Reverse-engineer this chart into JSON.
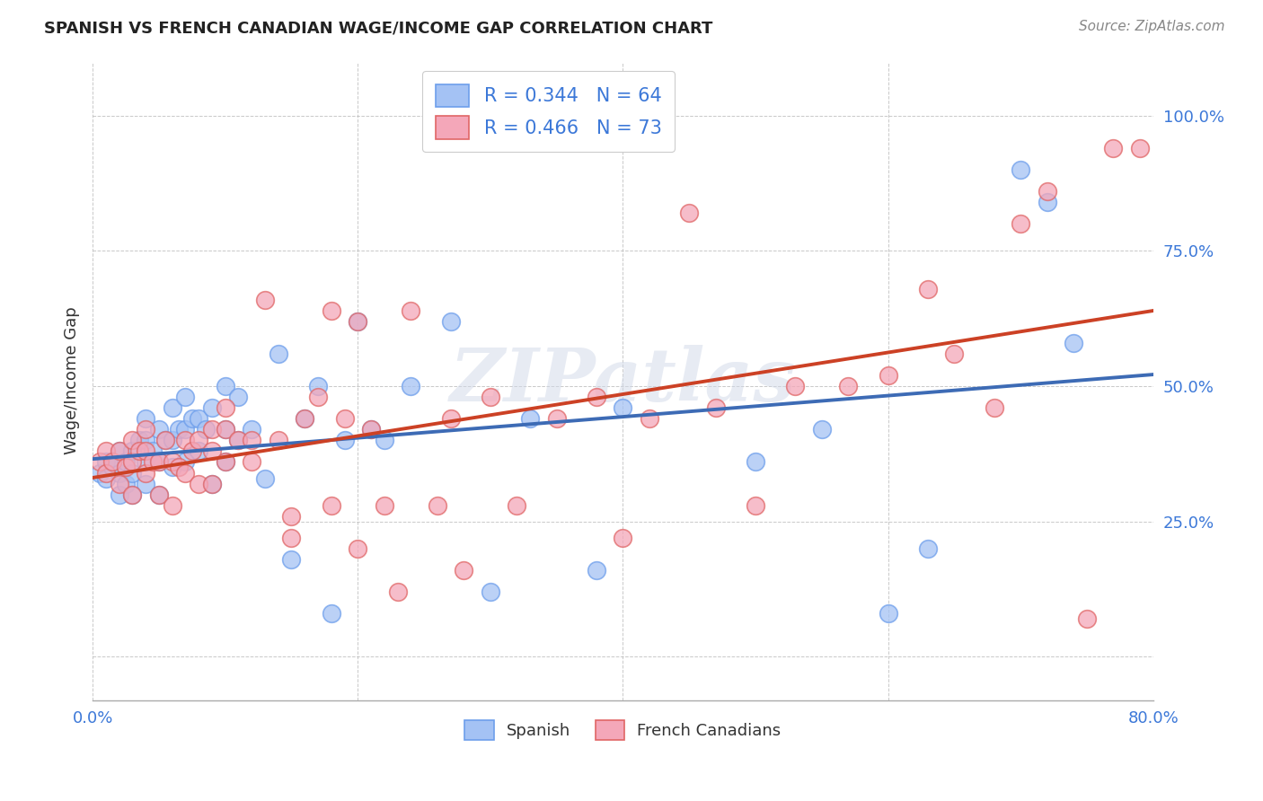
{
  "title": "SPANISH VS FRENCH CANADIAN WAGE/INCOME GAP CORRELATION CHART",
  "source": "Source: ZipAtlas.com",
  "ylabel": "Wage/Income Gap",
  "xlim": [
    0.0,
    0.8
  ],
  "ylim": [
    -0.08,
    1.1
  ],
  "xticks": [
    0.0,
    0.2,
    0.4,
    0.6,
    0.8
  ],
  "xticklabels": [
    "0.0%",
    "",
    "",
    "",
    "80.0%"
  ],
  "yticks": [
    0.0,
    0.25,
    0.5,
    0.75,
    1.0
  ],
  "yticklabels": [
    "",
    "25.0%",
    "50.0%",
    "75.0%",
    "100.0%"
  ],
  "spanish_R": 0.344,
  "spanish_N": 64,
  "french_R": 0.466,
  "french_N": 73,
  "spanish_color": "#a4c2f4",
  "french_color": "#f4a7b9",
  "spanish_edge_color": "#6d9eeb",
  "french_edge_color": "#e06666",
  "spanish_line_color": "#3d6bb5",
  "french_line_color": "#cc4125",
  "watermark": "ZIPatlas",
  "legend_labels": [
    "Spanish",
    "French Canadians"
  ],
  "spanish_x": [
    0.005,
    0.01,
    0.01,
    0.015,
    0.02,
    0.02,
    0.02,
    0.025,
    0.025,
    0.03,
    0.03,
    0.03,
    0.035,
    0.04,
    0.04,
    0.04,
    0.04,
    0.045,
    0.05,
    0.05,
    0.05,
    0.055,
    0.06,
    0.06,
    0.06,
    0.065,
    0.07,
    0.07,
    0.07,
    0.075,
    0.08,
    0.08,
    0.085,
    0.09,
    0.09,
    0.1,
    0.1,
    0.1,
    0.11,
    0.11,
    0.12,
    0.13,
    0.14,
    0.15,
    0.16,
    0.17,
    0.18,
    0.19,
    0.2,
    0.21,
    0.22,
    0.24,
    0.27,
    0.3,
    0.33,
    0.38,
    0.4,
    0.5,
    0.55,
    0.6,
    0.63,
    0.7,
    0.72,
    0.74
  ],
  "spanish_y": [
    0.34,
    0.33,
    0.36,
    0.35,
    0.3,
    0.34,
    0.38,
    0.32,
    0.36,
    0.3,
    0.34,
    0.38,
    0.4,
    0.32,
    0.36,
    0.4,
    0.44,
    0.38,
    0.3,
    0.36,
    0.42,
    0.4,
    0.35,
    0.4,
    0.46,
    0.42,
    0.36,
    0.42,
    0.48,
    0.44,
    0.38,
    0.44,
    0.42,
    0.32,
    0.46,
    0.36,
    0.42,
    0.5,
    0.4,
    0.48,
    0.42,
    0.33,
    0.56,
    0.18,
    0.44,
    0.5,
    0.08,
    0.4,
    0.62,
    0.42,
    0.4,
    0.5,
    0.62,
    0.12,
    0.44,
    0.16,
    0.46,
    0.36,
    0.42,
    0.08,
    0.2,
    0.9,
    0.84,
    0.58
  ],
  "french_x": [
    0.005,
    0.01,
    0.01,
    0.015,
    0.02,
    0.02,
    0.025,
    0.03,
    0.03,
    0.03,
    0.035,
    0.04,
    0.04,
    0.04,
    0.045,
    0.05,
    0.05,
    0.055,
    0.06,
    0.06,
    0.065,
    0.07,
    0.07,
    0.075,
    0.08,
    0.08,
    0.09,
    0.09,
    0.09,
    0.1,
    0.1,
    0.1,
    0.11,
    0.12,
    0.12,
    0.13,
    0.14,
    0.15,
    0.15,
    0.16,
    0.17,
    0.18,
    0.18,
    0.19,
    0.2,
    0.2,
    0.21,
    0.22,
    0.23,
    0.24,
    0.26,
    0.27,
    0.28,
    0.3,
    0.32,
    0.35,
    0.38,
    0.4,
    0.42,
    0.45,
    0.47,
    0.5,
    0.53,
    0.57,
    0.6,
    0.63,
    0.65,
    0.68,
    0.7,
    0.72,
    0.75,
    0.77,
    0.79
  ],
  "french_y": [
    0.36,
    0.34,
    0.38,
    0.36,
    0.32,
    0.38,
    0.35,
    0.3,
    0.36,
    0.4,
    0.38,
    0.34,
    0.38,
    0.42,
    0.36,
    0.3,
    0.36,
    0.4,
    0.28,
    0.36,
    0.35,
    0.34,
    0.4,
    0.38,
    0.32,
    0.4,
    0.32,
    0.38,
    0.42,
    0.36,
    0.42,
    0.46,
    0.4,
    0.36,
    0.4,
    0.66,
    0.4,
    0.22,
    0.26,
    0.44,
    0.48,
    0.28,
    0.64,
    0.44,
    0.2,
    0.62,
    0.42,
    0.28,
    0.12,
    0.64,
    0.28,
    0.44,
    0.16,
    0.48,
    0.28,
    0.44,
    0.48,
    0.22,
    0.44,
    0.82,
    0.46,
    0.28,
    0.5,
    0.5,
    0.52,
    0.68,
    0.56,
    0.46,
    0.8,
    0.86,
    0.07,
    0.94,
    0.94
  ]
}
